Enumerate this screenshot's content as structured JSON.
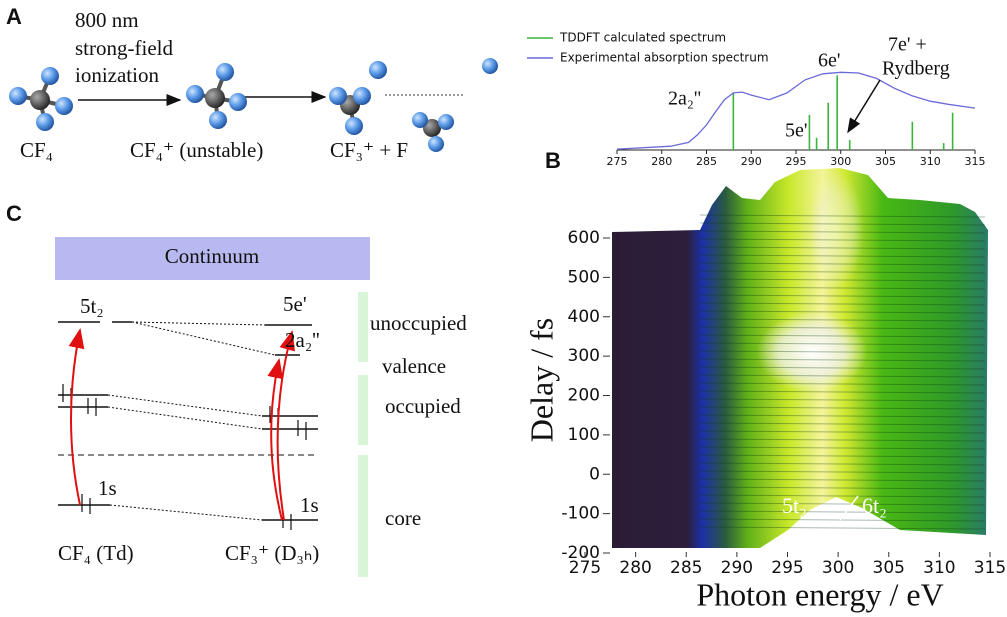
{
  "panel_labels": {
    "a": "A",
    "b": "B",
    "c": "C"
  },
  "scheme": {
    "ionization_label": [
      "800 nm",
      "strong-field",
      "ionization"
    ],
    "species": [
      "CF₄",
      "CF₄⁺ (unstable)",
      "CF₃⁺ + F"
    ]
  },
  "chart_data": [
    {
      "type": "line",
      "xlim": [
        275,
        315
      ],
      "xticks": [
        275,
        280,
        285,
        290,
        295,
        300,
        305,
        310,
        315
      ],
      "ylim": [
        0,
        1.05
      ],
      "series": [
        {
          "name": "TDDFT calculated spectrum",
          "color": "#3cb43c",
          "style": "stick",
          "x": [
            288,
            296.5,
            297.3,
            298.6,
            299.6,
            301,
            308,
            311.5,
            312.5
          ],
          "values": [
            0.75,
            0.46,
            0.16,
            0.62,
            0.98,
            0.13,
            0.37,
            0.09,
            0.49
          ]
        },
        {
          "name": "Experimental absorption spectrum",
          "color": "#6a6ad8",
          "style": "line",
          "x": [
            275,
            278,
            281,
            283,
            284,
            285,
            286,
            287,
            288,
            289,
            290,
            292,
            294,
            296,
            298,
            300,
            302,
            304,
            306,
            308,
            310,
            312,
            315
          ],
          "values": [
            0.01,
            0.03,
            0.05,
            0.1,
            0.2,
            0.33,
            0.5,
            0.66,
            0.75,
            0.76,
            0.72,
            0.66,
            0.75,
            0.92,
            1.0,
            1.02,
            1.01,
            0.94,
            0.81,
            0.71,
            0.64,
            0.6,
            0.55
          ]
        }
      ],
      "annotations": [
        "2a₂''",
        "6e'",
        "5e'",
        "7e' +",
        "Rydberg"
      ]
    },
    {
      "type": "surface",
      "xlabel": "Photon energy / eV",
      "ylabel": "Delay / fs",
      "xlim": [
        275,
        315
      ],
      "xticks": [
        275,
        280,
        285,
        290,
        295,
        300,
        305,
        310,
        315
      ],
      "ylim": [
        -200,
        600
      ],
      "yticks": [
        -200,
        -100,
        0,
        100,
        200,
        300,
        400,
        500,
        600
      ],
      "annotations": [
        "5t₂",
        "6t₂"
      ]
    }
  ],
  "levels": {
    "continuum": "Continuum",
    "left_labels": [
      "5t₂",
      "1s"
    ],
    "right_labels": [
      "5e'",
      "2a₂''",
      "1s"
    ],
    "groups": [
      "unoccupied",
      "valence",
      "occupied",
      "core"
    ],
    "symmetries": [
      "CF₄ (Td)",
      "CF₃⁺ (D₃ₕ)"
    ]
  }
}
